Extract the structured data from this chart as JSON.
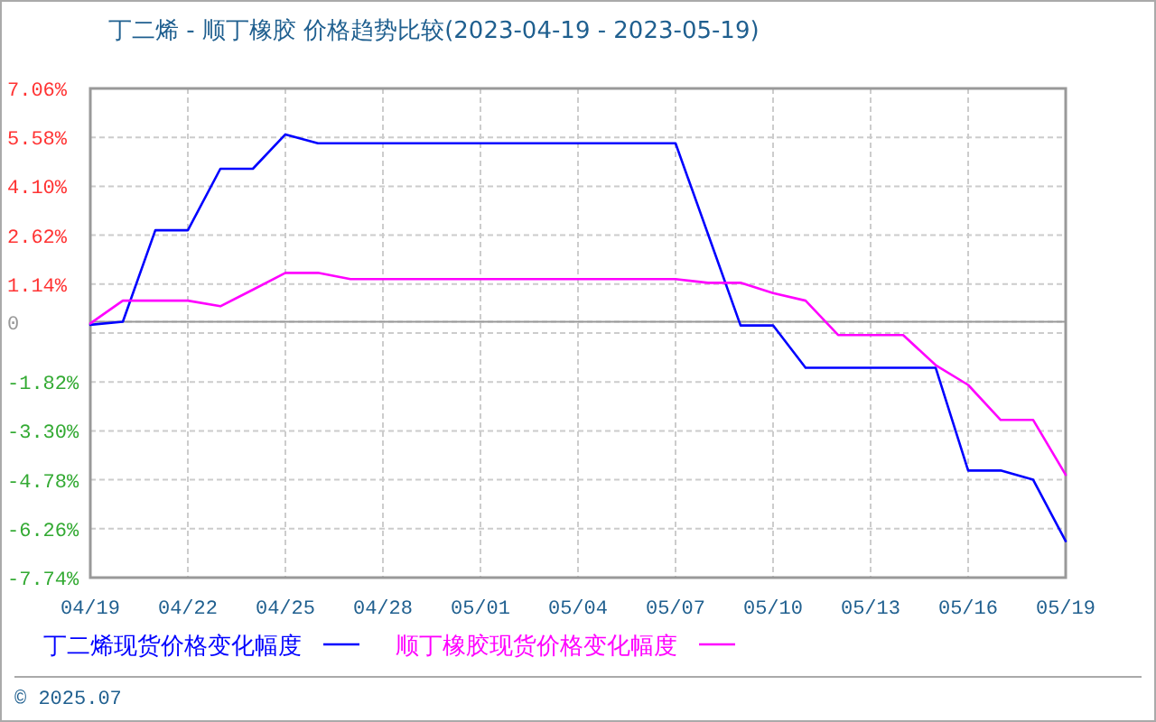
{
  "chart_data": {
    "type": "line",
    "title": "丁二烯 - 顺丁橡胶 价格趋势比较(2023-04-19 - 2023-05-19)",
    "x": [
      "2023-04-19",
      "2023-04-20",
      "2023-04-21",
      "2023-04-22",
      "2023-04-23",
      "2023-04-24",
      "2023-04-25",
      "2023-04-26",
      "2023-04-27",
      "2023-04-28",
      "2023-04-29",
      "2023-04-30",
      "2023-05-01",
      "2023-05-02",
      "2023-05-03",
      "2023-05-04",
      "2023-05-05",
      "2023-05-06",
      "2023-05-07",
      "2023-05-08",
      "2023-05-09",
      "2023-05-10",
      "2023-05-11",
      "2023-05-12",
      "2023-05-13",
      "2023-05-14",
      "2023-05-15",
      "2023-05-16",
      "2023-05-17",
      "2023-05-18",
      "2023-05-19"
    ],
    "series": [
      {
        "name": "丁二烯现货价格变化幅度",
        "color": "#0000ff",
        "values": [
          -0.09,
          0.0,
          2.77,
          2.77,
          4.63,
          4.63,
          5.67,
          5.4,
          5.4,
          5.4,
          5.4,
          5.4,
          5.4,
          5.4,
          5.4,
          5.4,
          5.4,
          5.4,
          5.4,
          2.65,
          -0.11,
          -0.11,
          -1.39,
          -1.39,
          -1.39,
          -1.39,
          -1.39,
          -4.5,
          -4.5,
          -4.78,
          -6.64
        ]
      },
      {
        "name": "顺丁橡胶现货价格变化幅度",
        "color": "#ff00ff",
        "values": [
          -0.05,
          0.64,
          0.64,
          0.64,
          0.47,
          0.97,
          1.48,
          1.48,
          1.29,
          1.29,
          1.29,
          1.29,
          1.29,
          1.29,
          1.29,
          1.29,
          1.29,
          1.29,
          1.29,
          1.18,
          1.18,
          0.87,
          0.64,
          -0.4,
          -0.4,
          -0.4,
          -1.31,
          -1.91,
          -2.97,
          -2.97,
          -4.63
        ]
      }
    ],
    "xlim": [
      "2023-04-19",
      "2023-05-19"
    ],
    "xticks": [
      {
        "value": "2023-04-19",
        "label": "04/19"
      },
      {
        "value": "2023-04-22",
        "label": "04/22"
      },
      {
        "value": "2023-04-25",
        "label": "04/25"
      },
      {
        "value": "2023-04-28",
        "label": "04/28"
      },
      {
        "value": "2023-05-01",
        "label": "05/01"
      },
      {
        "value": "2023-05-04",
        "label": "05/04"
      },
      {
        "value": "2023-05-07",
        "label": "05/07"
      },
      {
        "value": "2023-05-10",
        "label": "05/10"
      },
      {
        "value": "2023-05-13",
        "label": "05/13"
      },
      {
        "value": "2023-05-16",
        "label": "05/16"
      },
      {
        "value": "2023-05-19",
        "label": "05/19"
      }
    ],
    "ylim": [
      -7.74,
      7.06
    ],
    "yticks": [
      {
        "value": 7.06,
        "label": "7.06%"
      },
      {
        "value": 5.58,
        "label": "5.58%"
      },
      {
        "value": 4.1,
        "label": "4.10%"
      },
      {
        "value": 2.62,
        "label": "2.62%"
      },
      {
        "value": 1.14,
        "label": "1.14%"
      },
      0,
      {
        "value": -0.34,
        "label": null
      },
      {
        "value": -1.82,
        "label": "-1.82%"
      },
      {
        "value": -3.3,
        "label": "-3.30%"
      },
      {
        "value": -4.78,
        "label": "-4.78%"
      },
      {
        "value": -6.26,
        "label": "-6.26%"
      },
      {
        "value": -7.74,
        "label": "-7.74%"
      }
    ],
    "ref_lines": [
      {
        "axis": "y",
        "value": 0,
        "color": "#999999",
        "line_style": "solid"
      }
    ],
    "grid": true,
    "legend": "bottom",
    "marker": "none",
    "line_style": "solid",
    "annotations": [
      "© 2025.07"
    ]
  }
}
